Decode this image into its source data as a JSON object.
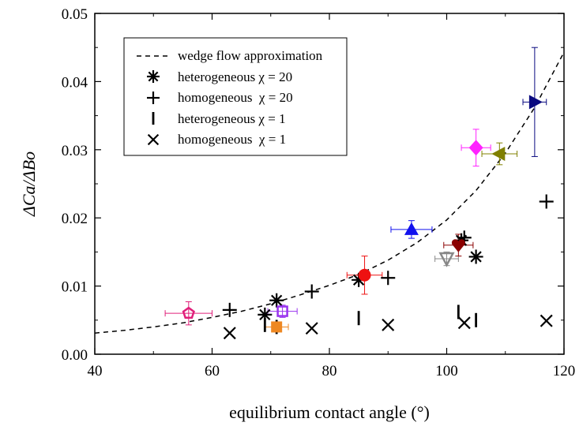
{
  "chart_data": {
    "type": "scatter",
    "xlabel": "equilibrium contact angle (°)",
    "ylabel": "ΔCa/ΔBo",
    "xlim": [
      40,
      120
    ],
    "ylim": [
      0,
      0.05
    ],
    "x_ticks": [
      "40",
      "60",
      "80",
      "100",
      "120"
    ],
    "x_tick_values": [
      40,
      60,
      80,
      100,
      120
    ],
    "y_ticks": [
      "0.00",
      "0.01",
      "0.02",
      "0.03",
      "0.04",
      "0.05"
    ],
    "y_tick_values": [
      0,
      0.01,
      0.02,
      0.03,
      0.04,
      0.05
    ],
    "grid": false,
    "legend_position": "top-left",
    "legend": [
      {
        "label": "wedge flow approximation",
        "marker": "dashed-line"
      },
      {
        "label": "heterogeneous χ = 20",
        "marker": "asterisk"
      },
      {
        "label": "homogeneous  χ = 20",
        "marker": "plus"
      },
      {
        "label": "heterogeneous χ = 1",
        "marker": "vbar"
      },
      {
        "label": "homogeneous  χ = 1",
        "marker": "x"
      }
    ],
    "curve": {
      "name": "wedge flow approximation",
      "style": "dashed",
      "x": [
        40,
        45,
        50,
        55,
        60,
        65,
        70,
        75,
        80,
        85,
        90,
        95,
        100,
        105,
        110,
        115,
        120
      ],
      "y": [
        0.0031,
        0.0035,
        0.004,
        0.0046,
        0.0054,
        0.0063,
        0.0074,
        0.0087,
        0.0101,
        0.0117,
        0.0138,
        0.0164,
        0.0197,
        0.024,
        0.0295,
        0.0362,
        0.0443
      ]
    },
    "series": [
      {
        "name": "heterogeneous χ = 20",
        "marker": "asterisk",
        "color": "#000000",
        "points": [
          [
            69,
            0.0058
          ],
          [
            71,
            0.0079
          ],
          [
            85,
            0.0109
          ],
          [
            102.5,
            0.0167
          ],
          [
            105,
            0.0143
          ]
        ]
      },
      {
        "name": "homogeneous  χ = 20",
        "marker": "plus",
        "color": "#000000",
        "points": [
          [
            63,
            0.0065
          ],
          [
            77,
            0.0092
          ],
          [
            90,
            0.0112
          ],
          [
            103,
            0.0171
          ],
          [
            117,
            0.0224
          ]
        ]
      },
      {
        "name": "heterogeneous χ = 1",
        "marker": "vbar",
        "color": "#000000",
        "points": [
          [
            69,
            0.0043
          ],
          [
            71,
            0.004
          ],
          [
            85,
            0.0053
          ],
          [
            102,
            0.0062
          ],
          [
            105,
            0.005
          ]
        ]
      },
      {
        "name": "homogeneous  χ = 1",
        "marker": "x",
        "color": "#000000",
        "points": [
          [
            63,
            0.0031
          ],
          [
            77,
            0.0038
          ],
          [
            90,
            0.0043
          ],
          [
            103,
            0.0046
          ],
          [
            117,
            0.0049
          ]
        ]
      }
    ],
    "experimental_points": [
      {
        "marker": "pentagon-open",
        "color": "#e0207a",
        "x": 56,
        "y": 0.006,
        "xerr": 4,
        "yerr": 0.0017
      },
      {
        "marker": "square-open",
        "color": "#9933ee",
        "x": 72,
        "y": 0.0063,
        "xerr": 2.5,
        "yerr": 0.0009
      },
      {
        "marker": "square-filled",
        "color": "#ee8822",
        "x": 71,
        "y": 0.004,
        "xerr": 2,
        "yerr": 0.0006
      },
      {
        "marker": "circle-filled",
        "color": "#ee1111",
        "x": 86,
        "y": 0.0116,
        "xerr": 3,
        "yerr": 0.0028
      },
      {
        "marker": "triangle-up-filled",
        "color": "#1111ee",
        "x": 94,
        "y": 0.0183,
        "xerr": 3.5,
        "yerr": 0.0013
      },
      {
        "marker": "triangle-down-open",
        "color": "#888888",
        "x": 100,
        "y": 0.014,
        "xerr": 2,
        "yerr": 0.001
      },
      {
        "marker": "heart-filled",
        "color": "#8b0000",
        "x": 102,
        "y": 0.016,
        "xerr": 2.5,
        "yerr": 0.0016
      },
      {
        "marker": "diamond-filled",
        "color": "#ff22ff",
        "x": 105,
        "y": 0.0303,
        "xerr": 2.5,
        "yerr": 0.0027
      },
      {
        "marker": "triangle-left-filled",
        "color": "#808000",
        "x": 109,
        "y": 0.0294,
        "xerr": 3,
        "yerr": 0.0016
      },
      {
        "marker": "triangle-right-filled",
        "color": "#0a0a80",
        "x": 115,
        "y": 0.037,
        "xerr": 2,
        "yerr": 0.008
      }
    ]
  }
}
